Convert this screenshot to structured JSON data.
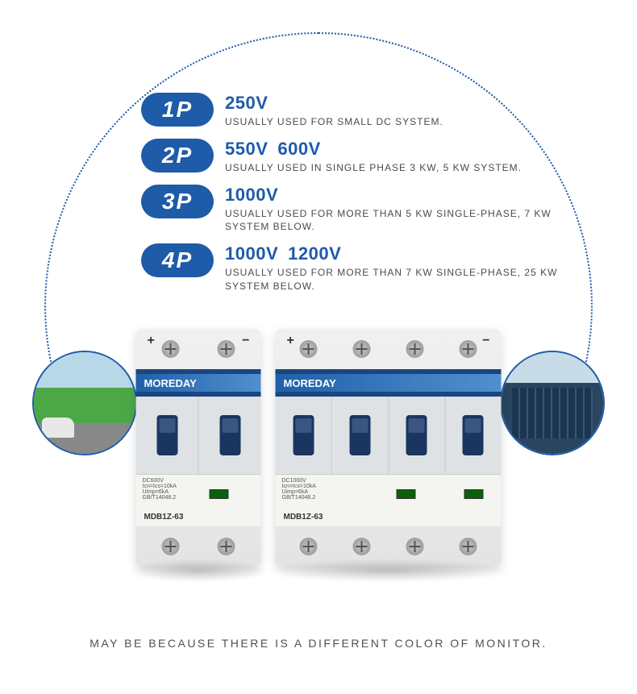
{
  "specs": [
    {
      "badge": "1P",
      "voltage": [
        "250V"
      ],
      "desc": "USUALLY USED FOR SMALL DC SYSTEM."
    },
    {
      "badge": "2P",
      "voltage": [
        "550V",
        "600V"
      ],
      "desc": "USUALLY USED IN SINGLE PHASE 3 KW, 5 KW SYSTEM."
    },
    {
      "badge": "3P",
      "voltage": [
        "1000V"
      ],
      "desc": "USUALLY USED FOR MORE THAN 5 KW SINGLE-PHASE, 7 KW SYSTEM BELOW."
    },
    {
      "badge": "4P",
      "voltage": [
        "1000V",
        "1200V"
      ],
      "desc": "USUALLY USED FOR MORE THAN 7 KW SINGLE-PHASE, 25 KW SYSTEM BELOW."
    }
  ],
  "brand": "MOREDAY",
  "product_left": {
    "polarity": [
      "+",
      "−"
    ],
    "rating_line1": "DC600V",
    "rating_line2": "Icn=Ics=10kA",
    "rating_line3": "Uimp=6kA",
    "standard": "GB/T14048.2",
    "model": "MDB1Z-63",
    "poles": 2
  },
  "product_right": {
    "polarity": [
      "+",
      "−"
    ],
    "rating_line1": "DC1000V",
    "rating_line2": "Icn=Ics=10kA",
    "rating_line3": "Uimp=6kA",
    "standard": "GB/T14048.2",
    "model": "MDB1Z-63",
    "poles": 4
  },
  "left_photo_alt": "ev-charging-station",
  "right_photo_alt": "solar-panels",
  "footer": "MAY BE BECAUSE THERE IS A DIFFERENT COLOR OF MONITOR.",
  "colors": {
    "brand_blue": "#1e5ba8",
    "text_gray": "#4a4a4a",
    "device_body": "#e4e4e4",
    "toggle_blue": "#1a3560",
    "indicator_green": "#0a610a"
  }
}
